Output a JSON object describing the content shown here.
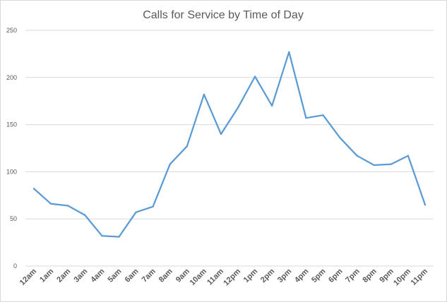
{
  "chart_data": {
    "type": "line",
    "title": "Calls for Service by Time of Day",
    "xlabel": "",
    "ylabel": "",
    "categories": [
      "12am",
      "1am",
      "2am",
      "3am",
      "4am",
      "5am",
      "6am",
      "7am",
      "8am",
      "9am",
      "10am",
      "11am",
      "12pm",
      "1pm",
      "2pm",
      "3pm",
      "4pm",
      "5pm",
      "6pm",
      "7pm",
      "8pm",
      "9pm",
      "10pm",
      "11pm"
    ],
    "values": [
      82,
      66,
      64,
      54,
      32,
      31,
      57,
      63,
      108,
      127,
      182,
      140,
      168,
      201,
      170,
      227,
      157,
      160,
      136,
      117,
      107,
      108,
      117,
      65
    ],
    "ylim": [
      0,
      250
    ],
    "yticks": [
      0,
      50,
      100,
      150,
      200,
      250
    ],
    "grid": true,
    "legend": "none",
    "line_color": "#5b9bd5"
  }
}
